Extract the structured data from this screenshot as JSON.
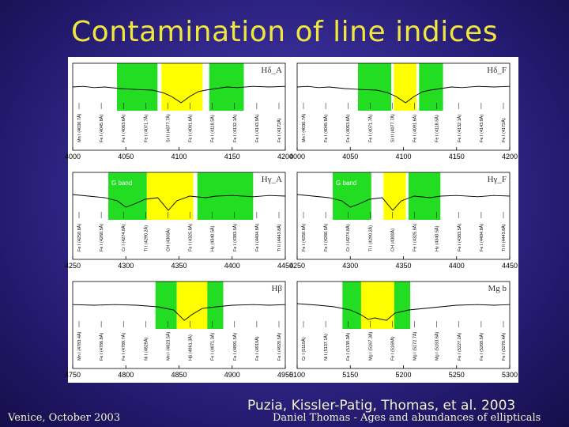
{
  "slide": {
    "title": "Contamination of line indices",
    "citation": "Puzia, Kissler-Patig, Thomas, et al. 2003",
    "footer_left": "Venice, October 2003",
    "footer_right": "Daniel Thomas - Ages and abundances of ellipticals"
  },
  "colors": {
    "green": "#22dd22",
    "yellow": "#ffff00",
    "title": "#f0e640"
  },
  "chart_data": [
    {
      "type": "line",
      "label": "Hδ_A",
      "xlim": [
        4000,
        4200
      ],
      "ticks": [
        4000,
        4050,
        4100,
        4150,
        4200
      ],
      "bands": [
        {
          "color": "green",
          "from": 4041.6,
          "to": 4079.75
        },
        {
          "color": "yellow",
          "from": 4083.5,
          "to": 4122.25
        },
        {
          "color": "green",
          "from": 4128.5,
          "to": 4161.0
        }
      ],
      "spectrum": [
        [
          4000,
          0.6
        ],
        [
          4010,
          0.62
        ],
        [
          4020,
          0.58
        ],
        [
          4030,
          0.6
        ],
        [
          4045,
          0.55
        ],
        [
          4060,
          0.52
        ],
        [
          4075,
          0.5
        ],
        [
          4085,
          0.42
        ],
        [
          4093,
          0.3
        ],
        [
          4102,
          0.1
        ],
        [
          4110,
          0.3
        ],
        [
          4118,
          0.45
        ],
        [
          4125,
          0.5
        ],
        [
          4135,
          0.55
        ],
        [
          4145,
          0.6
        ],
        [
          4155,
          0.58
        ],
        [
          4170,
          0.62
        ],
        [
          4185,
          0.6
        ],
        [
          4200,
          0.62
        ]
      ],
      "lines": [
        "Mn I (4030.7Å)",
        "Fe I (4045.8Å)",
        "Fe I (4063.6Å)",
        "Fe I (4071.7Å)",
        "Sr II (4077.7Å)",
        "Fe I (4091.6Å)",
        "Fe I (4118.5Å)",
        "Fe I (4132.1Å)",
        "Fe I (4143.9Å)",
        "Fe I (4172Å)"
      ]
    },
    {
      "type": "line",
      "label": "Hδ_F",
      "xlim": [
        4000,
        4200
      ],
      "ticks": [
        4000,
        4050,
        4100,
        4150,
        4200
      ],
      "bands": [
        {
          "color": "green",
          "from": 4057.25,
          "to": 4088.5
        },
        {
          "color": "yellow",
          "from": 4091.0,
          "to": 4112.25
        },
        {
          "color": "green",
          "from": 4114.75,
          "to": 4137.25
        }
      ],
      "spectrum": [
        [
          4000,
          0.6
        ],
        [
          4010,
          0.62
        ],
        [
          4020,
          0.58
        ],
        [
          4030,
          0.6
        ],
        [
          4045,
          0.55
        ],
        [
          4060,
          0.52
        ],
        [
          4075,
          0.5
        ],
        [
          4085,
          0.42
        ],
        [
          4093,
          0.3
        ],
        [
          4102,
          0.1
        ],
        [
          4110,
          0.3
        ],
        [
          4118,
          0.45
        ],
        [
          4125,
          0.5
        ],
        [
          4135,
          0.55
        ],
        [
          4145,
          0.6
        ],
        [
          4155,
          0.58
        ],
        [
          4170,
          0.62
        ],
        [
          4185,
          0.6
        ],
        [
          4200,
          0.62
        ]
      ],
      "lines": [
        "Mn I (4030.7Å)",
        "Fe I (4045.8Å)",
        "Fe I (4063.6Å)",
        "Fe I (4071.7Å)",
        "Sr II (4077.7Å)",
        "Fe I (4091.6Å)",
        "Fe I (4118.5Å)",
        "Fe I (4132.1Å)",
        "Fe I (4143.9Å)",
        "Fe I (4172Å)"
      ]
    },
    {
      "type": "line",
      "label": "Hγ_A",
      "band_label": "G band",
      "xlim": [
        4250,
        4450
      ],
      "ticks": [
        4250,
        4300,
        4350,
        4400,
        4450
      ],
      "bands": [
        {
          "color": "green",
          "from": 4283.5,
          "to": 4319.75
        },
        {
          "color": "yellow",
          "from": 4319.75,
          "to": 4363.5
        },
        {
          "color": "green",
          "from": 4367.25,
          "to": 4419.75
        }
      ],
      "spectrum": [
        [
          4250,
          0.65
        ],
        [
          4265,
          0.6
        ],
        [
          4280,
          0.55
        ],
        [
          4292,
          0.45
        ],
        [
          4300,
          0.25
        ],
        [
          4308,
          0.35
        ],
        [
          4318,
          0.5
        ],
        [
          4330,
          0.55
        ],
        [
          4340,
          0.15
        ],
        [
          4348,
          0.45
        ],
        [
          4360,
          0.6
        ],
        [
          4375,
          0.55
        ],
        [
          4385,
          0.6
        ],
        [
          4400,
          0.62
        ],
        [
          4420,
          0.58
        ],
        [
          4435,
          0.62
        ],
        [
          4450,
          0.6
        ]
      ],
      "lines": [
        "Fe I (4250.8Å)",
        "Fe I (4260.5Å)",
        "Cr I (4274.8Å)",
        "Ti I (4290.2Å)",
        "CH (4300Å)",
        "Fe I (4325.8Å)",
        "Hγ (4340.5Å)",
        "Fe I (4383.5Å)",
        "Fe I (4404.8Å)",
        "Ti II (4443.8Å)"
      ]
    },
    {
      "type": "line",
      "label": "Hγ_F",
      "band_label": "G band",
      "xlim": [
        4250,
        4450
      ],
      "ticks": [
        4250,
        4300,
        4350,
        4400,
        4450
      ],
      "bands": [
        {
          "color": "green",
          "from": 4283.5,
          "to": 4319.75
        },
        {
          "color": "yellow",
          "from": 4331.25,
          "to": 4352.25
        },
        {
          "color": "green",
          "from": 4354.75,
          "to": 4384.75
        }
      ],
      "spectrum": [
        [
          4250,
          0.65
        ],
        [
          4265,
          0.6
        ],
        [
          4280,
          0.55
        ],
        [
          4292,
          0.45
        ],
        [
          4300,
          0.25
        ],
        [
          4308,
          0.35
        ],
        [
          4318,
          0.5
        ],
        [
          4330,
          0.55
        ],
        [
          4340,
          0.15
        ],
        [
          4348,
          0.45
        ],
        [
          4360,
          0.6
        ],
        [
          4375,
          0.55
        ],
        [
          4385,
          0.6
        ],
        [
          4400,
          0.62
        ],
        [
          4420,
          0.58
        ],
        [
          4435,
          0.62
        ],
        [
          4450,
          0.6
        ]
      ],
      "lines": [
        "Fe I (4250.8Å)",
        "Fe I (4260.5Å)",
        "Cr I (4274.8Å)",
        "Ti I (4290.2Å)",
        "CH (4300Å)",
        "Fe I (4325.8Å)",
        "Hγ (4340.5Å)",
        "Fe I (4383.5Å)",
        "Fe I (4404.8Å)",
        "Ti II (4443.8Å)"
      ]
    },
    {
      "type": "line",
      "label": "Hβ",
      "xlim": [
        4750,
        4950
      ],
      "ticks": [
        4750,
        4800,
        4850,
        4900,
        4950
      ],
      "bands": [
        {
          "color": "green",
          "from": 4827.875,
          "to": 4847.875
        },
        {
          "color": "yellow",
          "from": 4847.875,
          "to": 4876.625
        },
        {
          "color": "green",
          "from": 4876.625,
          "to": 4891.625
        }
      ],
      "spectrum": [
        [
          4750,
          0.62
        ],
        [
          4770,
          0.6
        ],
        [
          4790,
          0.62
        ],
        [
          4810,
          0.6
        ],
        [
          4830,
          0.55
        ],
        [
          4845,
          0.45
        ],
        [
          4855,
          0.12
        ],
        [
          4862,
          0.3
        ],
        [
          4872,
          0.5
        ],
        [
          4885,
          0.55
        ],
        [
          4900,
          0.6
        ],
        [
          4920,
          0.62
        ],
        [
          4935,
          0.6
        ],
        [
          4950,
          0.62
        ]
      ],
      "lines": [
        "Mn I (4783.4Å)",
        "Fe I (4786.8Å)",
        "Fe I (4789.7Å)",
        "Ni I (4829Å)",
        "Mn I (4823.5Å)",
        "Hβ (4861.3Å)",
        "Fe I (4871.3Å)",
        "Fe I (4891.5Å)",
        "Fe I (4919Å)",
        "Fe I (4920.5Å)"
      ]
    },
    {
      "type": "line",
      "label": "Mg b",
      "xlim": [
        5100,
        5300
      ],
      "ticks": [
        5100,
        5150,
        5200,
        5250,
        5300
      ],
      "bands": [
        {
          "color": "green",
          "from": 5142.625,
          "to": 5161.375
        },
        {
          "color": "yellow",
          "from": 5160.125,
          "to": 5192.625
        },
        {
          "color": "green",
          "from": 5191.375,
          "to": 5206.375
        }
      ],
      "spectrum": [
        [
          5100,
          0.65
        ],
        [
          5120,
          0.6
        ],
        [
          5135,
          0.55
        ],
        [
          5150,
          0.45
        ],
        [
          5160,
          0.3
        ],
        [
          5167,
          0.15
        ],
        [
          5173,
          0.2
        ],
        [
          5184,
          0.12
        ],
        [
          5192,
          0.35
        ],
        [
          5205,
          0.45
        ],
        [
          5220,
          0.5
        ],
        [
          5235,
          0.55
        ],
        [
          5250,
          0.6
        ],
        [
          5270,
          0.62
        ],
        [
          5285,
          0.6
        ],
        [
          5300,
          0.62
        ]
      ],
      "lines": [
        "Cr I (5110Å)",
        "Ni I (5137.1Å)",
        "Fe I (5139.3Å)",
        "Mg I (5167.3Å)",
        "Fe I (5169Å)",
        "Mg I (5172.7Å)",
        "Mg I (5183.6Å)",
        "Fe I (5227.2Å)",
        "Fe I (5269.5Å)",
        "Fe I (5270.4Å)"
      ]
    }
  ]
}
